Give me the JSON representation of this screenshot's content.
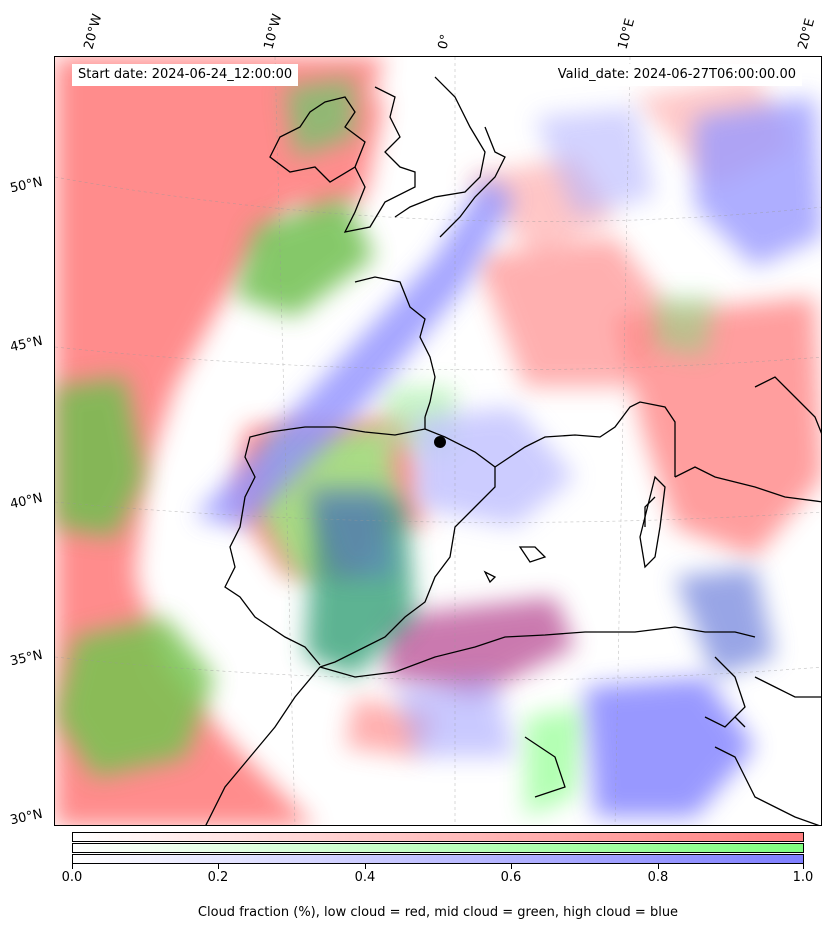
{
  "header": {
    "start_date": "Start date: 2024-06-24_12:00:00",
    "valid_date": "Valid_date: 2024-06-27T06:00:00.00"
  },
  "graticule": {
    "lon_labels": [
      "20°W",
      "10°W",
      "0°",
      "10°E",
      "20°E"
    ],
    "lat_labels": [
      "50°N",
      "45°N",
      "40°N",
      "35°N",
      "30°N"
    ]
  },
  "layers": {
    "low_cloud_color": "#ff7f7f",
    "mid_cloud_color": "#7fff7f",
    "high_cloud_color": "#7f7fff",
    "coastline_color": "#000000"
  },
  "colorbar": {
    "ticks": [
      "0.0",
      "0.2",
      "0.4",
      "0.6",
      "0.8",
      "1.0"
    ],
    "range": [
      0.0,
      1.0
    ],
    "caption": "Cloud fraction (%), low cloud = red, mid cloud = green, high cloud = blue"
  }
}
